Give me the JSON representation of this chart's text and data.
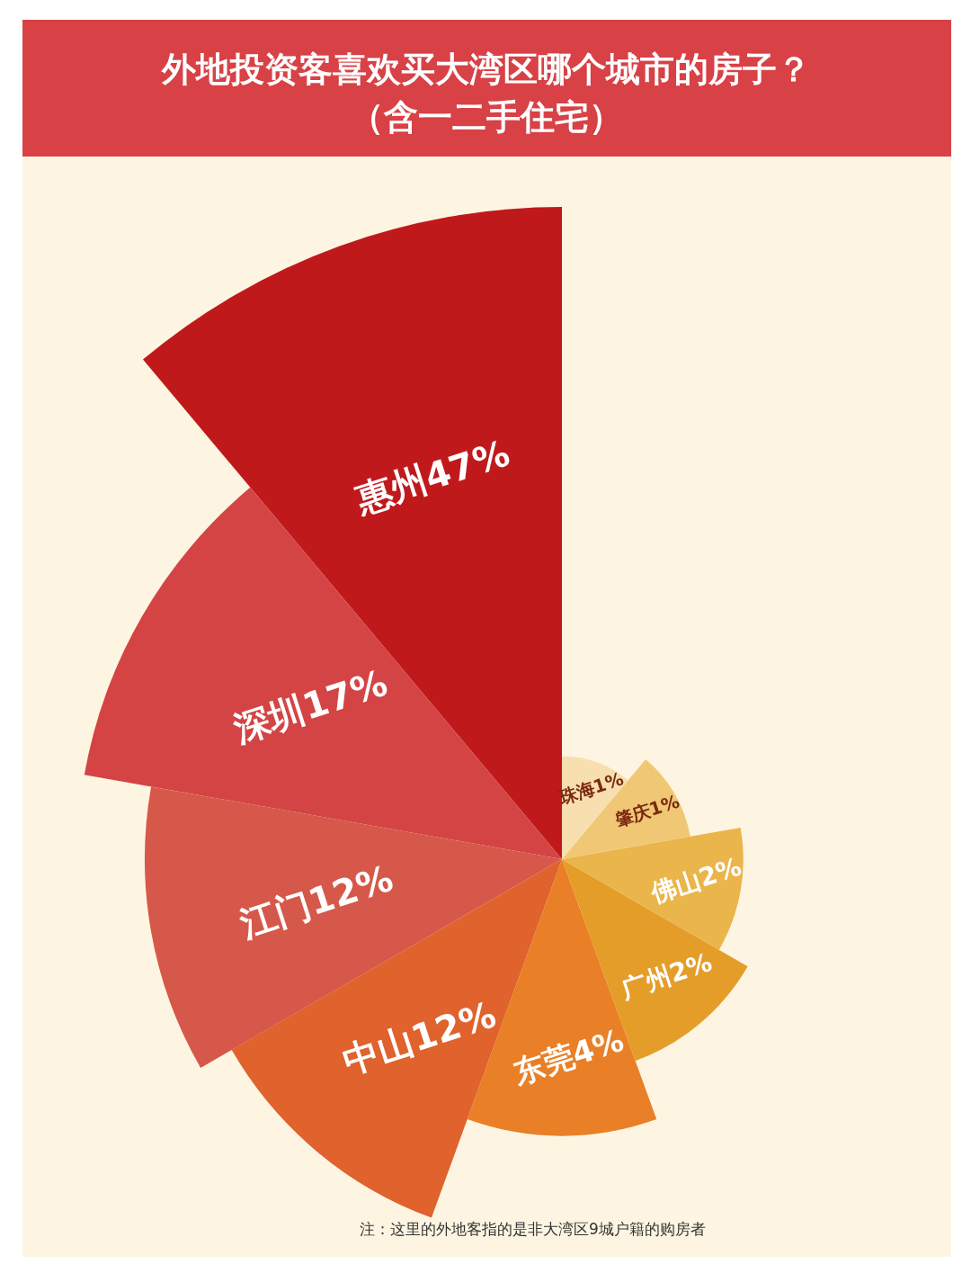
{
  "chart_data": {
    "type": "other",
    "title": "外地投资客喜欢买大湾区哪个城市的房子？",
    "subtitle": "（含一二手住宅）",
    "categories": [
      "惠州",
      "深圳",
      "江门",
      "中山",
      "东莞",
      "广州",
      "佛山",
      "肇庆",
      "珠海"
    ],
    "values": [
      47,
      17,
      12,
      12,
      4,
      2,
      2,
      1,
      1
    ],
    "value_labels": [
      "47%",
      "17%",
      "12%",
      "12%",
      "4%",
      "2%",
      "2%",
      "1%",
      "1%"
    ],
    "colors": [
      "#c0191c",
      "#d44444",
      "#d6584a",
      "#e0622d",
      "#e97f26",
      "#e59d2a",
      "#eab54a",
      "#f0c774",
      "#f7dfaf"
    ],
    "annotations": [
      "注：这里的外地客指的是非大湾区9城户籍的购房者"
    ]
  }
}
